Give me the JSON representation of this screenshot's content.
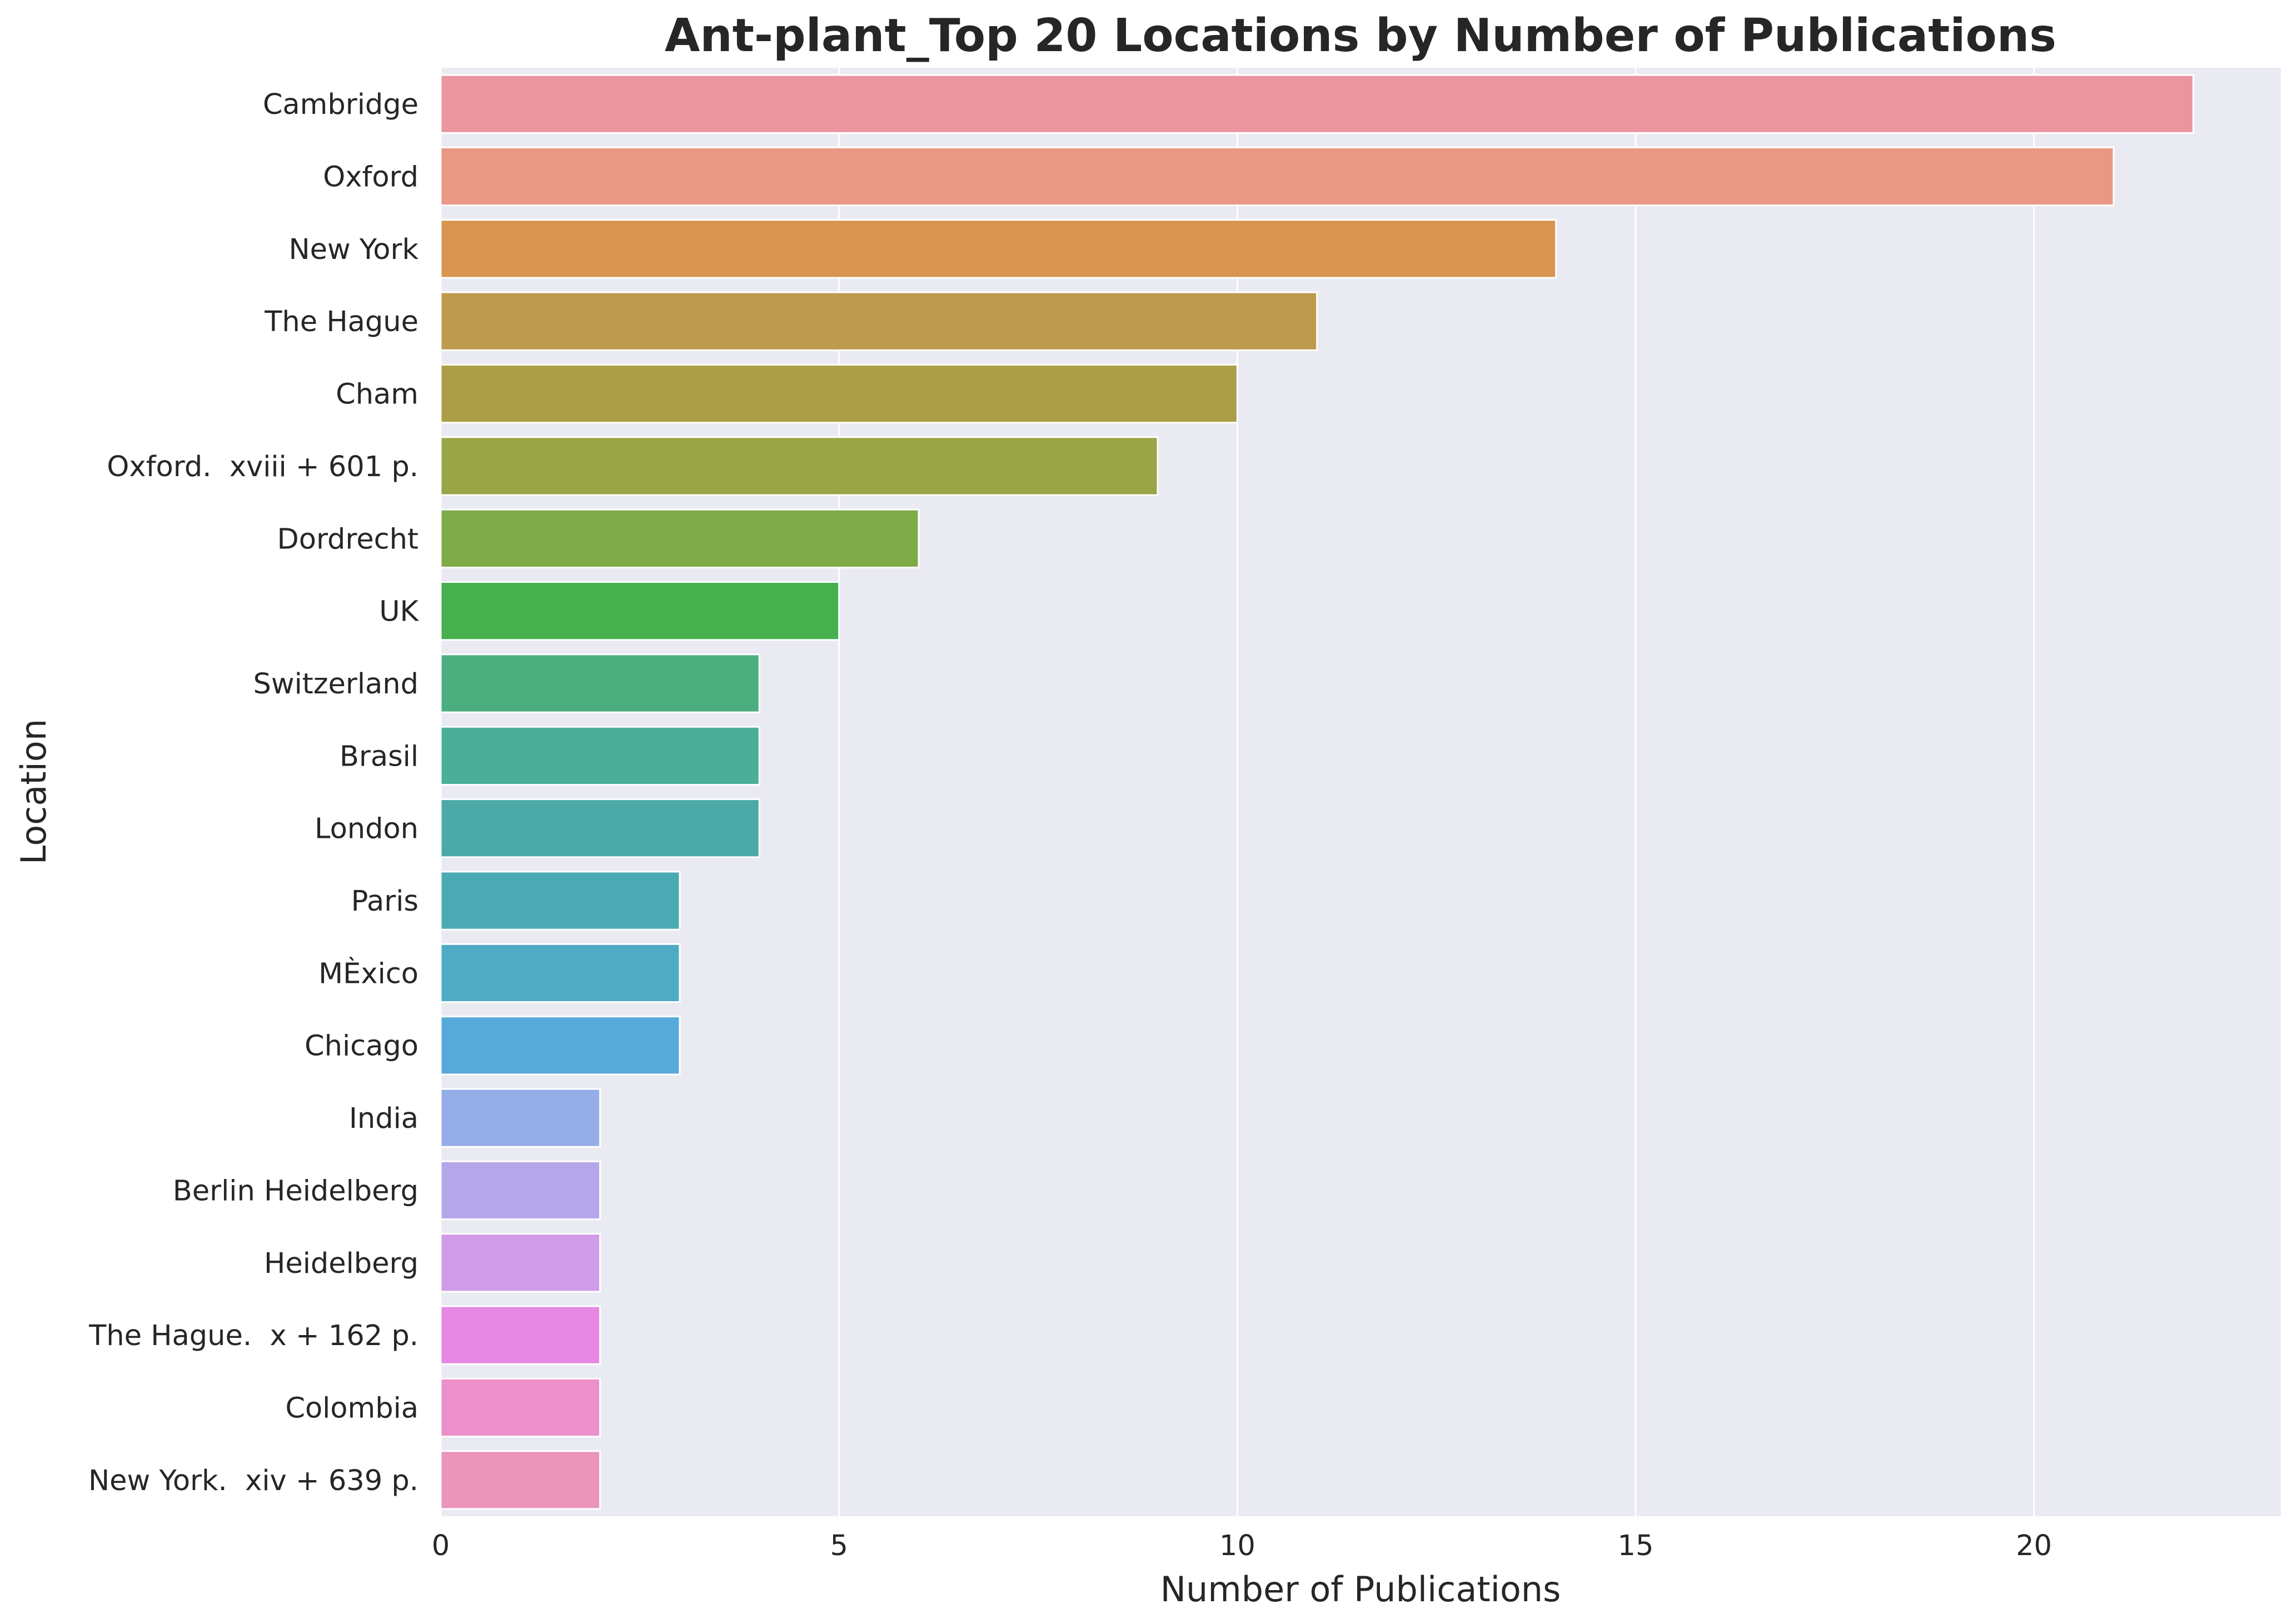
{
  "chart_data": {
    "type": "bar",
    "orientation": "horizontal",
    "title": "Ant-plant_Top 20 Locations by Number of Publications",
    "xlabel": "Number of Publications",
    "ylabel": "Location",
    "xlim": [
      0,
      23.1
    ],
    "xticks": [
      "0",
      "5",
      "10",
      "15",
      "20"
    ],
    "grid": true,
    "categories": [
      "Cambridge",
      "Oxford",
      "New York",
      "The Hague",
      "Cham",
      "Oxford.  xviii + 601 p.",
      "Dordrecht",
      "UK",
      "Switzerland",
      "Brasil",
      "London",
      "Paris",
      "MÈxico",
      "Chicago",
      "India",
      "Berlin Heidelberg",
      "Heidelberg",
      "The Hague.  x + 162 p.",
      "Colombia",
      "New York.  xiv + 639 p."
    ],
    "values": [
      22,
      21,
      14,
      11,
      10,
      9,
      6,
      5,
      4,
      4,
      4,
      3,
      3,
      3,
      2,
      2,
      2,
      2,
      2,
      2
    ],
    "colors": [
      "#eb95a0",
      "#e89885",
      "#d7954f",
      "#bd9a4d",
      "#aa9f47",
      "#9aa548",
      "#7faa48",
      "#47b04f",
      "#4cae7f",
      "#4bae98",
      "#4baaa7",
      "#4caab5",
      "#4faac4",
      "#56aad9",
      "#95aee8",
      "#b5a6ea",
      "#d09be8",
      "#e688e3",
      "#eb90c8",
      "#ea95b9"
    ],
    "plot_background": "#eaeaf2",
    "grid_color": "#ffffff"
  }
}
